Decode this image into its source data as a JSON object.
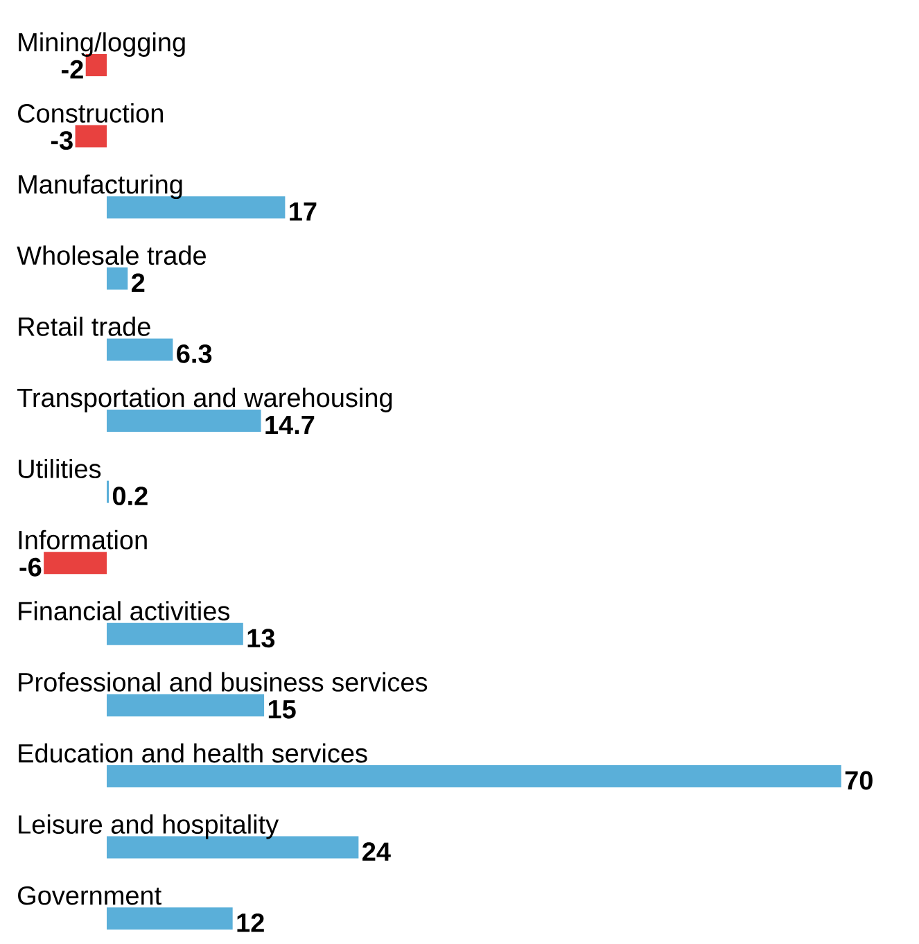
{
  "chart_data": {
    "type": "bar",
    "orientation": "horizontal",
    "data_labels": true,
    "categories": [
      "Mining/logging",
      "Construction",
      "Manufacturing",
      "Wholesale trade",
      "Retail trade",
      "Transportation and warehousing",
      "Utilities",
      "Information",
      "Financial activities",
      "Professional and business services",
      "Education and health services",
      "Leisure and hospitality",
      "Government"
    ],
    "values": [
      -2,
      -3,
      17,
      2,
      6.3,
      14.7,
      0.2,
      -6,
      13,
      15,
      70,
      24,
      12
    ],
    "colors": [
      "#e8413f",
      "#e8413f",
      "#5aafd9",
      "#5aafd9",
      "#5aafd9",
      "#5aafd9",
      "#5aafd9",
      "#e8413f",
      "#5aafd9",
      "#5aafd9",
      "#5aafd9",
      "#5aafd9",
      "#5aafd9"
    ]
  }
}
